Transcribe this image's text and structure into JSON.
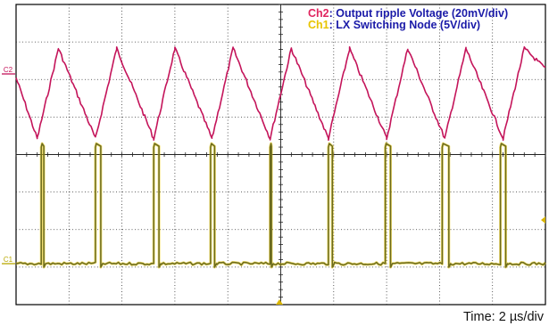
{
  "chart_data": {
    "type": "line",
    "title": "",
    "grid": true,
    "legend_placement": "top-right",
    "x_axis": {
      "unit": "µs",
      "per_division": 2,
      "divisions": 10,
      "range": [
        0,
        20
      ],
      "label": "Time: 2 µs/div"
    },
    "legend": [
      {
        "channel": "Ch2",
        "text": ": Output ripple Voltage (20mV/div)",
        "color": "#e0245e"
      },
      {
        "channel": "Ch1",
        "text": ": LX Switching Node (5V/div)",
        "color": "#e8c400"
      }
    ],
    "series": [
      {
        "name": "Ch2",
        "description": "Output ripple Voltage",
        "volts_per_div": 0.02,
        "color": "#c4145a",
        "waveform": "triangular ripple",
        "period_us": 2.2,
        "peak_to_peak_div": 2.4,
        "approx_peak_to_peak_mV": 48,
        "min_times_us": [
          0.8,
          3.0,
          5.2,
          7.4,
          9.6,
          11.8,
          14.0,
          16.2,
          18.4
        ],
        "max_times_us": [
          1.6,
          3.8,
          6.0,
          8.2,
          10.4,
          12.6,
          14.8,
          17.0,
          19.2
        ]
      },
      {
        "name": "Ch1",
        "description": "LX Switching Node",
        "volts_per_div": 5,
        "color": "#6b6b1e",
        "waveform": "switching pulses",
        "high_level_div": 3.2,
        "approx_high_level_V": 16,
        "low_level_div": 0,
        "pulses": [
          {
            "start_us": 0.95,
            "end_us": 1.05
          },
          {
            "start_us": 3.0,
            "end_us": 3.2
          },
          {
            "start_us": 5.2,
            "end_us": 5.4
          },
          {
            "start_us": 7.35,
            "end_us": 7.5
          },
          {
            "start_us": 9.6,
            "end_us": 9.65
          },
          {
            "start_us": 11.8,
            "end_us": 11.95
          },
          {
            "start_us": 13.95,
            "end_us": 14.15
          },
          {
            "start_us": 16.1,
            "end_us": 16.35
          },
          {
            "start_us": 18.3,
            "end_us": 18.5
          }
        ]
      }
    ],
    "channel_markers": [
      {
        "label": "C2",
        "color": "#c4145a"
      },
      {
        "label": "C1",
        "color": "#b8a800"
      }
    ]
  }
}
